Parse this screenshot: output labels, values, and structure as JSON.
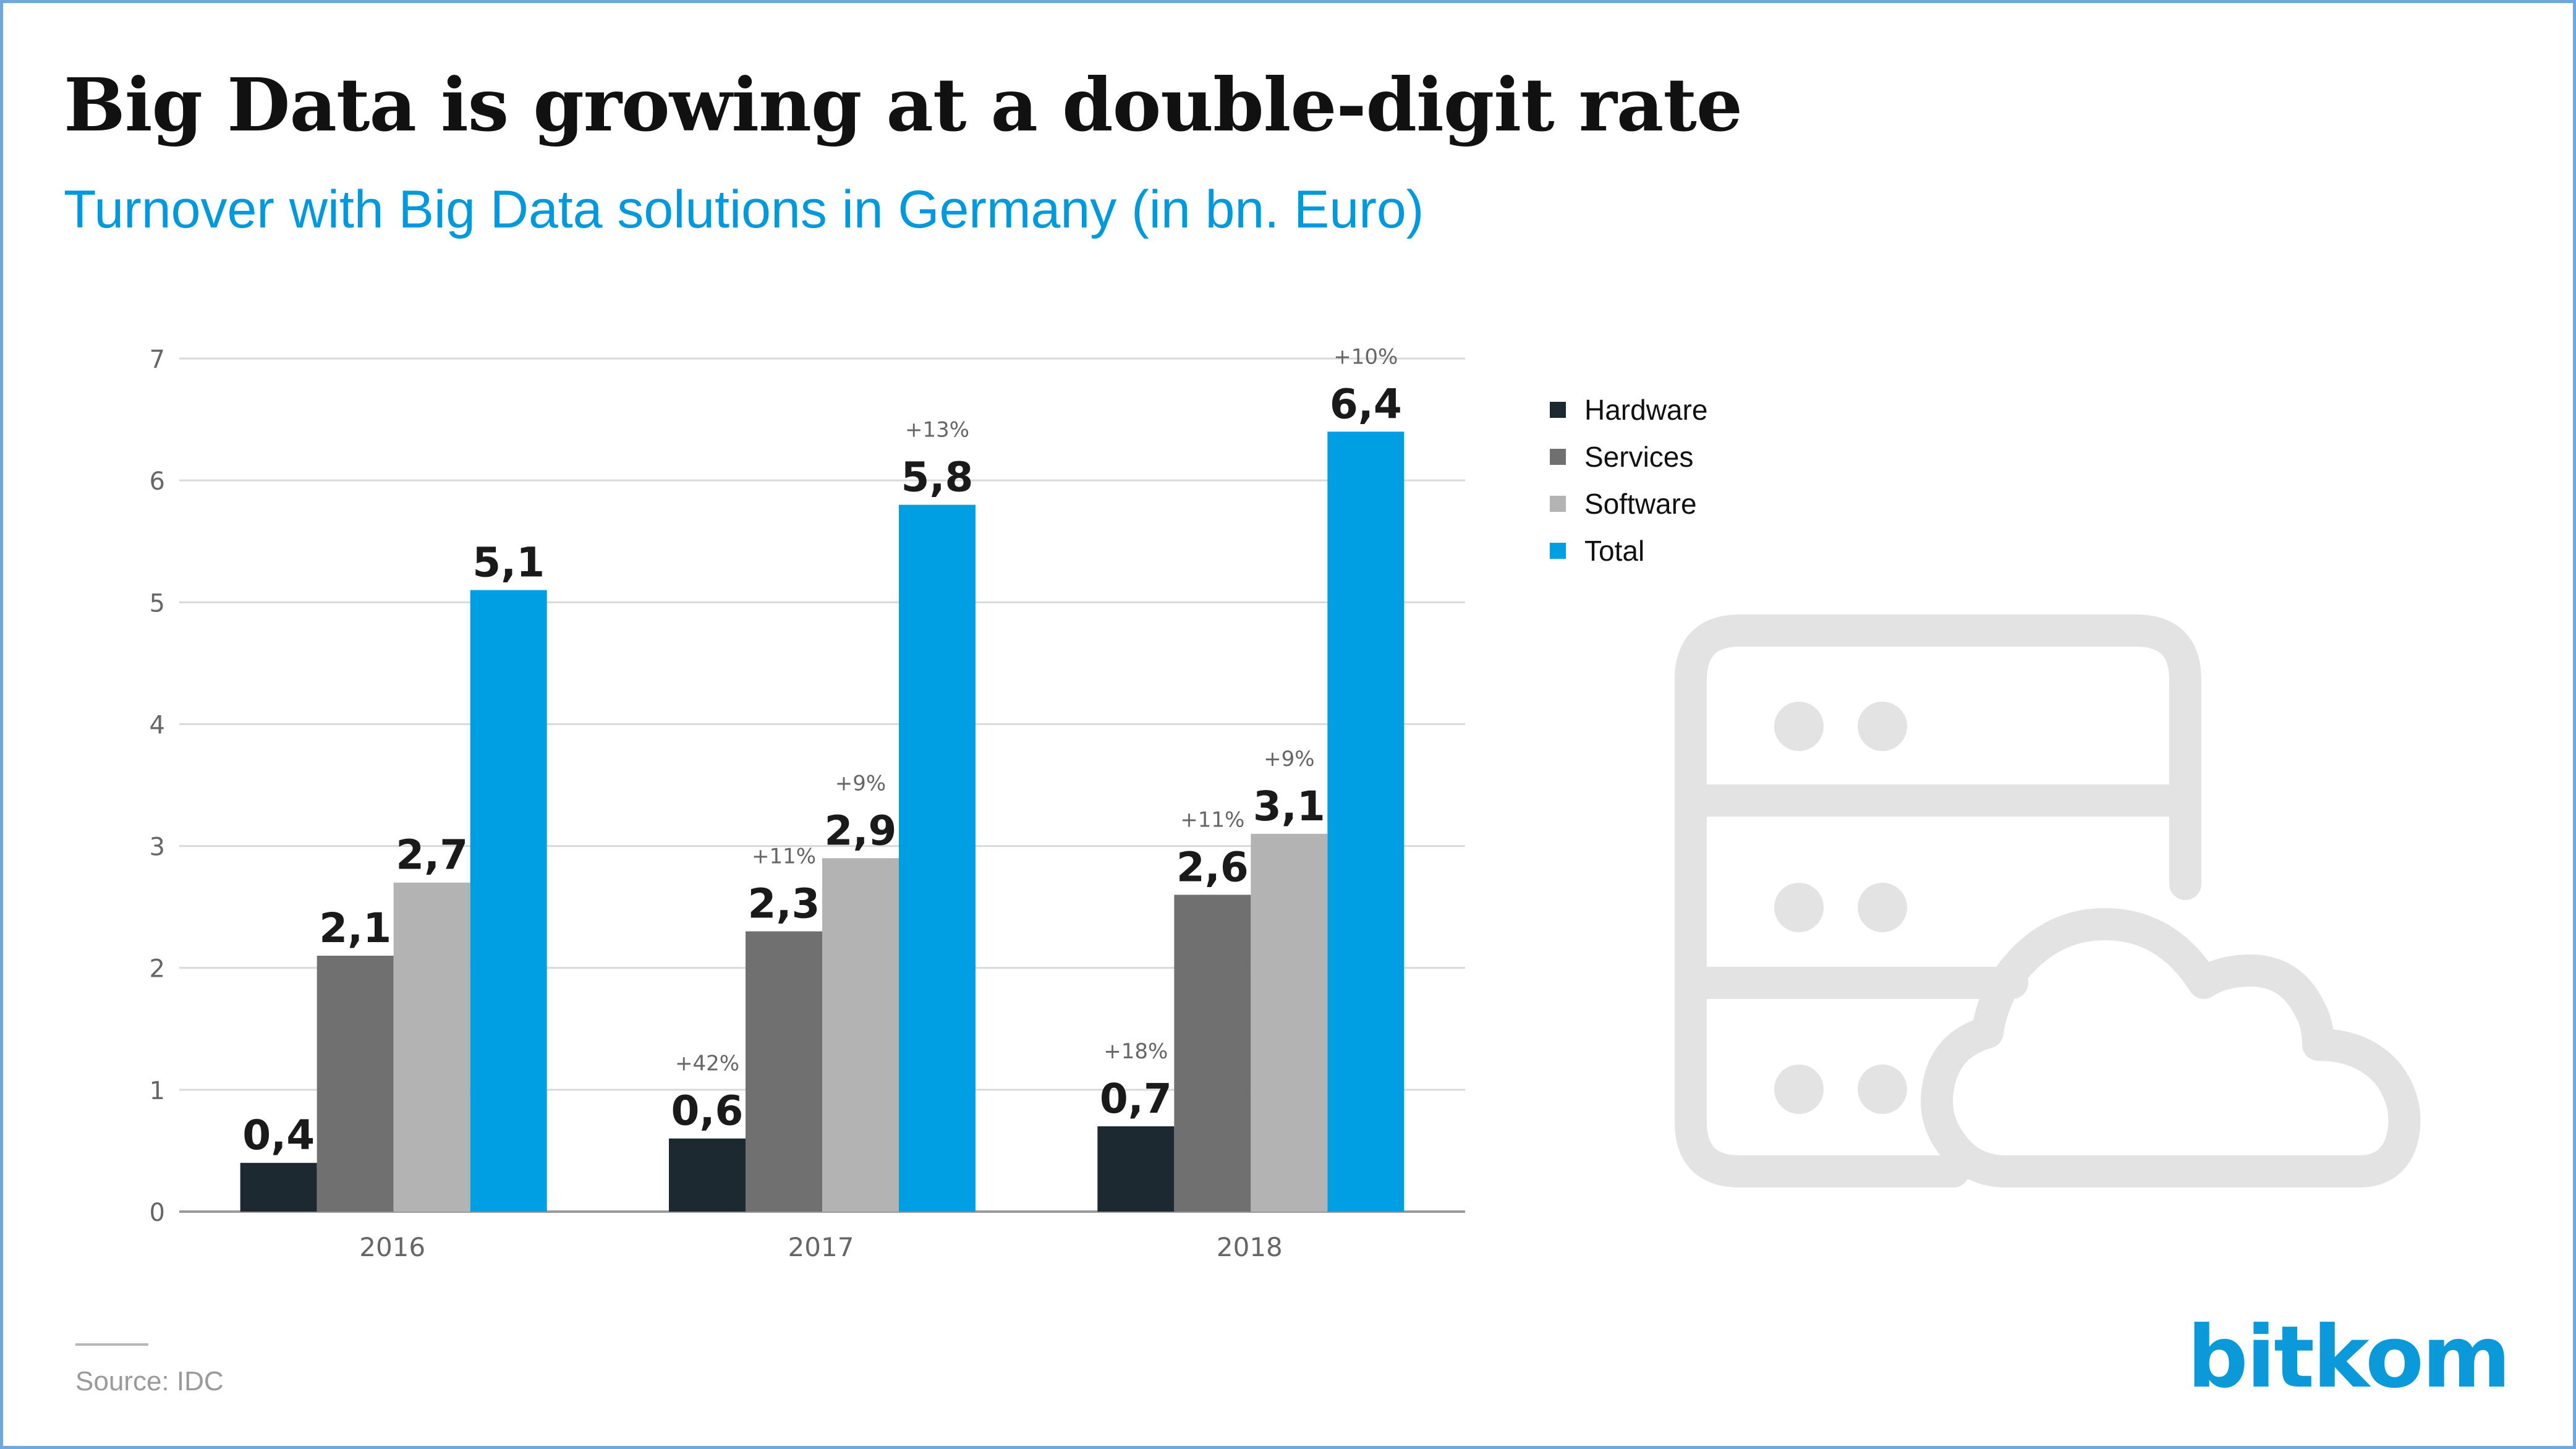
{
  "title": "Big Data is growing at a double-digit rate",
  "subtitle": "Turnover with Big Data solutions in Germany (in bn. Euro)",
  "source": "Source: IDC",
  "logo": "bitkom",
  "icons": {
    "background": "server-cloud-icon"
  },
  "colors": {
    "Hardware": "#1c2930",
    "Services": "#707070",
    "Software": "#b3b3b3",
    "Total": "#009fe3",
    "subtitle": "#0099dd",
    "logo": "#0a9ad9"
  },
  "chart_data": {
    "type": "bar",
    "categories": [
      "2016",
      "2017",
      "2018"
    ],
    "series": [
      {
        "name": "Hardware",
        "values": [
          0.4,
          0.6,
          0.7
        ],
        "value_labels": [
          "0,4",
          "0,6",
          "0,7"
        ],
        "change_labels": [
          "",
          "+42%",
          "+18%"
        ]
      },
      {
        "name": "Services",
        "values": [
          2.1,
          2.3,
          2.6
        ],
        "value_labels": [
          "2,1",
          "2,3",
          "2,6"
        ],
        "change_labels": [
          "",
          "+11%",
          "+11%"
        ]
      },
      {
        "name": "Software",
        "values": [
          2.7,
          2.9,
          3.1
        ],
        "value_labels": [
          "2,7",
          "2,9",
          "3,1"
        ],
        "change_labels": [
          "",
          "+9%",
          "+9%"
        ]
      },
      {
        "name": "Total",
        "values": [
          5.1,
          5.8,
          6.4
        ],
        "value_labels": [
          "5,1",
          "5,8",
          "6,4"
        ],
        "change_labels": [
          "",
          "+13%",
          "+10%"
        ]
      }
    ],
    "ylim": [
      0,
      7
    ],
    "yticks": [
      "0",
      "1",
      "2",
      "3",
      "4",
      "5",
      "6",
      "7"
    ],
    "grid": true,
    "legend_position": "right"
  }
}
